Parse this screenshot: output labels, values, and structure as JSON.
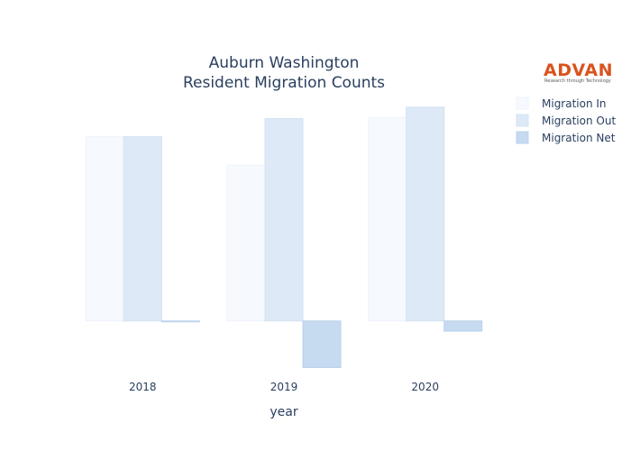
{
  "logo": {
    "name": "ADVAN",
    "tagline": "Research through Technology"
  },
  "chart_data": {
    "type": "bar",
    "title_lines": [
      "Auburn Washington",
      "Resident Migration Counts"
    ],
    "xlabel": "year",
    "ylabel": "",
    "categories": [
      "2018",
      "2019",
      "2020"
    ],
    "series": [
      {
        "name": "Migration In",
        "color": "#f6f9fd",
        "stroke": "#eef3fa",
        "values": [
          1620,
          1370,
          1790
        ]
      },
      {
        "name": "Migration Out",
        "color": "#dde9f6",
        "stroke": "#d3e2f3",
        "values": [
          1620,
          1780,
          1880
        ]
      },
      {
        "name": "Migration Net",
        "color": "#c6daf0",
        "stroke": "#bcd3ec",
        "values": [
          0,
          -410,
          -90
        ]
      }
    ],
    "ylim": [
      -430,
      1950
    ],
    "grid": false,
    "legend_position": "right"
  }
}
